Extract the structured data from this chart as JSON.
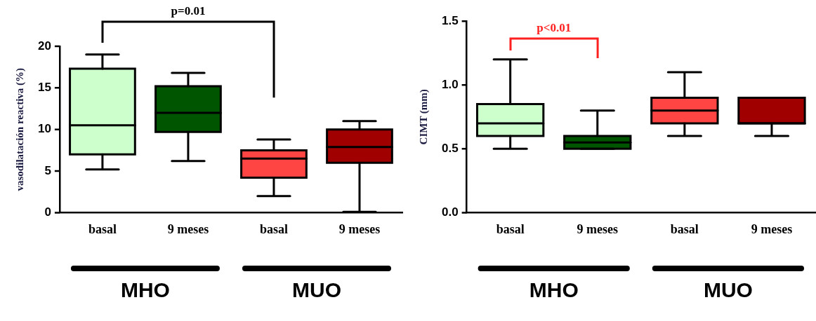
{
  "chart_data": [
    {
      "type": "box",
      "ylabel": "vasodilatación reactiva (%)",
      "categories": [
        "basal",
        "9 meses",
        "basal",
        "9 meses"
      ],
      "colors": [
        "#ccffcc",
        "#005500",
        "#ff4444",
        "#a00000"
      ],
      "boxes": [
        {
          "low": 5.2,
          "q1": 7,
          "median": 10.5,
          "q3": 17.3,
          "high": 19
        },
        {
          "low": 6.2,
          "q1": 9.7,
          "median": 12,
          "q3": 15.2,
          "high": 16.8
        },
        {
          "low": 2,
          "q1": 4.2,
          "median": 6.5,
          "q3": 7.5,
          "high": 8.8
        },
        {
          "low": 0.1,
          "q1": 6,
          "median": 7.9,
          "q3": 10,
          "high": 11
        }
      ],
      "ylim": [
        0,
        20
      ],
      "yticks": [
        0,
        5,
        10,
        15,
        20
      ],
      "grid": false,
      "legend": false,
      "annotations": [
        "p=0.01",
        "MHO",
        "MUO"
      ]
    },
    {
      "type": "box",
      "ylabel": "CIMT (mm)",
      "categories": [
        "basal",
        "9 meses",
        "basal",
        "9 meses"
      ],
      "colors": [
        "#ccffcc",
        "#005500",
        "#ff4444",
        "#a00000"
      ],
      "boxes": [
        {
          "low": 0.5,
          "q1": 0.6,
          "median": 0.7,
          "q3": 0.85,
          "high": 1.2
        },
        {
          "low": 0.5,
          "q1": 0.5,
          "median": 0.55,
          "q3": 0.6,
          "high": 0.8
        },
        {
          "low": 0.6,
          "q1": 0.7,
          "median": 0.8,
          "q3": 0.9,
          "high": 1.1
        },
        {
          "low": 0.6,
          "q1": 0.7,
          "median": 0.7,
          "q3": 0.9,
          "high": 0.9
        }
      ],
      "ylim": [
        0,
        1.5
      ],
      "yticks": [
        {
          "value": 0,
          "label": "0.0"
        },
        {
          "value": 0.5,
          "label": "0.5"
        },
        {
          "value": 1,
          "label": "1.0"
        },
        {
          "value": 1.5,
          "label": "1.5"
        }
      ],
      "grid": false,
      "legend": false,
      "annotations": [
        "p<0.01",
        "MHO",
        "MUO"
      ]
    }
  ]
}
